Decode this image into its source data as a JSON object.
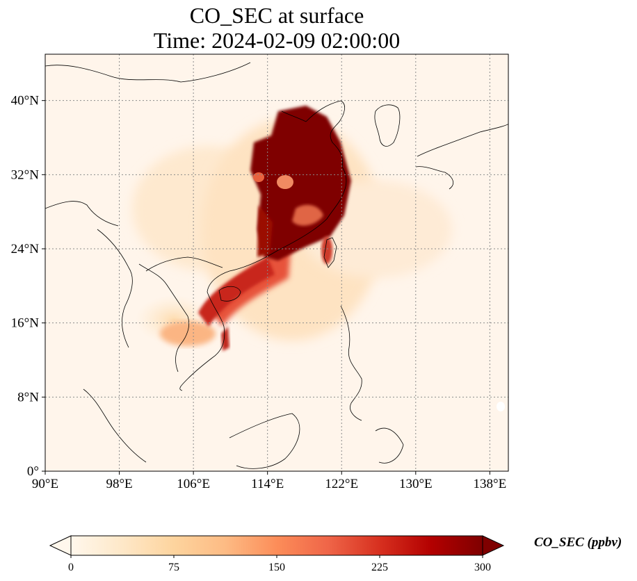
{
  "title_line1": "CO_SEC at surface",
  "title_line2": "Time: 2024-02-09 02:00:00",
  "map": {
    "projection": "PlateCarree",
    "lon_range": [
      90,
      140
    ],
    "lat_range": [
      0,
      45
    ],
    "gridlines": "dotted",
    "x_ticks": [
      {
        "value": 90,
        "label": "90°E"
      },
      {
        "value": 98,
        "label": "98°E"
      },
      {
        "value": 106,
        "label": "106°E"
      },
      {
        "value": 114,
        "label": "114°E"
      },
      {
        "value": 122,
        "label": "122°E"
      },
      {
        "value": 130,
        "label": "130°E"
      },
      {
        "value": 138,
        "label": "138°E"
      }
    ],
    "y_ticks": [
      {
        "value": 0,
        "label": "0°"
      },
      {
        "value": 8,
        "label": "8°N"
      },
      {
        "value": 16,
        "label": "16°N"
      },
      {
        "value": 24,
        "label": "24°N"
      },
      {
        "value": 32,
        "label": "32°N"
      },
      {
        "value": 40,
        "label": "40°N"
      }
    ],
    "background_color": "#fff5eb"
  },
  "colorbar": {
    "label": "CO_SEC (ppbv)",
    "colormap": "OrRd",
    "extend": "both",
    "range": [
      0,
      300
    ],
    "ticks": [
      "0",
      "75",
      "150",
      "225",
      "300"
    ],
    "colors": [
      "#fff7ec",
      "#fee8c8",
      "#fdd49e",
      "#fdbb84",
      "#fc8d59",
      "#ef6548",
      "#d7301f",
      "#b30000",
      "#7f0000"
    ]
  }
}
